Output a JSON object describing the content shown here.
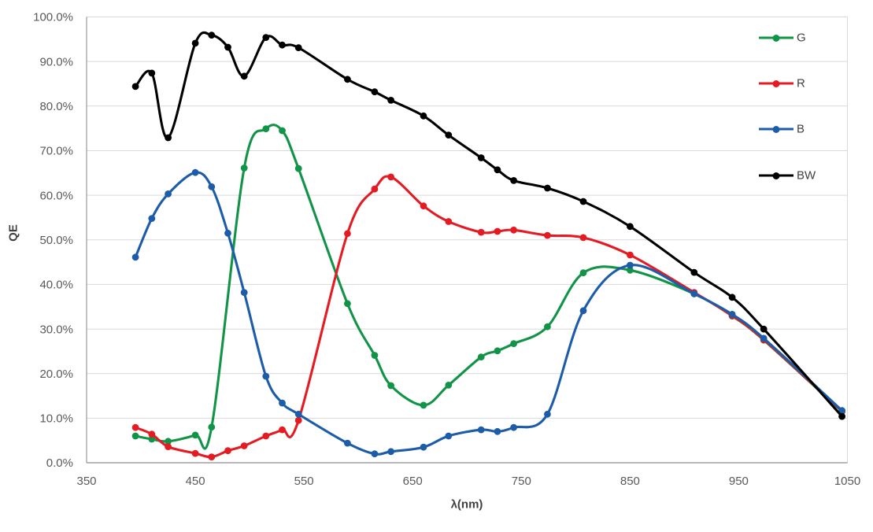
{
  "chart_data": {
    "type": "line",
    "title": "",
    "xlabel": "λ(nm)",
    "ylabel": "QE",
    "xlim": [
      350,
      1050
    ],
    "ylim": [
      0,
      100
    ],
    "grid": "horizontal-only",
    "legend_position": "inside-top-right",
    "x_ticks": [
      350,
      450,
      550,
      650,
      750,
      850,
      950,
      1050
    ],
    "x_tick_labels": [
      "350",
      "450",
      "550",
      "650",
      "750",
      "850",
      "950",
      "1050"
    ],
    "y_ticks": [
      0,
      10,
      20,
      30,
      40,
      50,
      60,
      70,
      80,
      90,
      100
    ],
    "y_tick_labels": [
      "0.0%",
      "10.0%",
      "20.0%",
      "30.0%",
      "40.0%",
      "50.0%",
      "60.0%",
      "70.0%",
      "80.0%",
      "90.0%",
      "100.0%"
    ],
    "series": [
      {
        "name": "G",
        "color": "#119447",
        "points": [
          [
            395,
            6.0
          ],
          [
            410,
            5.3
          ],
          [
            425,
            4.8
          ],
          [
            450,
            6.2
          ],
          [
            465,
            8.0
          ],
          [
            495,
            66.1
          ],
          [
            515,
            74.9
          ],
          [
            530,
            74.5
          ],
          [
            545,
            66.0
          ],
          [
            590,
            35.7
          ],
          [
            615,
            24.1
          ],
          [
            630,
            17.3
          ],
          [
            660,
            12.9
          ],
          [
            683,
            17.4
          ],
          [
            713,
            23.7
          ],
          [
            728,
            25.1
          ],
          [
            743,
            26.7
          ],
          [
            774,
            30.5
          ],
          [
            807,
            42.6
          ],
          [
            850,
            43.2
          ],
          [
            909,
            37.9
          ],
          [
            944,
            32.9
          ],
          [
            973,
            27.5
          ],
          [
            1045,
            11.5
          ]
        ]
      },
      {
        "name": "R",
        "color": "#E41B23",
        "points": [
          [
            395,
            7.9
          ],
          [
            410,
            6.4
          ],
          [
            425,
            3.6
          ],
          [
            450,
            2.1
          ],
          [
            465,
            1.3
          ],
          [
            480,
            2.7
          ],
          [
            495,
            3.8
          ],
          [
            515,
            6.0
          ],
          [
            530,
            7.4
          ],
          [
            545,
            9.5
          ],
          [
            590,
            51.4
          ],
          [
            615,
            61.4
          ],
          [
            630,
            64.1
          ],
          [
            660,
            57.6
          ],
          [
            683,
            54.1
          ],
          [
            713,
            51.7
          ],
          [
            728,
            51.9
          ],
          [
            743,
            52.2
          ],
          [
            774,
            51.0
          ],
          [
            807,
            50.5
          ],
          [
            850,
            46.6
          ],
          [
            909,
            38.2
          ],
          [
            944,
            33.0
          ],
          [
            973,
            27.6
          ],
          [
            1045,
            11.6
          ]
        ]
      },
      {
        "name": "B",
        "color": "#1D5CA8",
        "points": [
          [
            395,
            46.1
          ],
          [
            410,
            54.8
          ],
          [
            425,
            60.3
          ],
          [
            450,
            65.1
          ],
          [
            465,
            61.9
          ],
          [
            480,
            51.5
          ],
          [
            495,
            38.2
          ],
          [
            515,
            19.4
          ],
          [
            530,
            13.4
          ],
          [
            545,
            10.9
          ],
          [
            590,
            4.4
          ],
          [
            615,
            2.0
          ],
          [
            630,
            2.5
          ],
          [
            660,
            3.5
          ],
          [
            683,
            6.0
          ],
          [
            713,
            7.4
          ],
          [
            728,
            7.0
          ],
          [
            743,
            7.9
          ],
          [
            774,
            10.9
          ],
          [
            807,
            34.1
          ],
          [
            850,
            44.3
          ],
          [
            909,
            37.9
          ],
          [
            944,
            33.3
          ],
          [
            973,
            27.9
          ],
          [
            1045,
            11.7
          ]
        ]
      },
      {
        "name": "BW",
        "color": "#000000",
        "points": [
          [
            395,
            84.4
          ],
          [
            410,
            87.4
          ],
          [
            425,
            72.9
          ],
          [
            450,
            94.1
          ],
          [
            465,
            95.9
          ],
          [
            480,
            93.2
          ],
          [
            495,
            86.7
          ],
          [
            515,
            95.4
          ],
          [
            530,
            93.7
          ],
          [
            545,
            93.1
          ],
          [
            590,
            86.0
          ],
          [
            615,
            83.2
          ],
          [
            630,
            81.3
          ],
          [
            660,
            77.8
          ],
          [
            683,
            73.5
          ],
          [
            713,
            68.4
          ],
          [
            728,
            65.7
          ],
          [
            743,
            63.3
          ],
          [
            774,
            61.6
          ],
          [
            807,
            58.6
          ],
          [
            850,
            53.0
          ],
          [
            909,
            42.7
          ],
          [
            944,
            37.1
          ],
          [
            973,
            30.0
          ],
          [
            1045,
            10.4
          ]
        ]
      }
    ],
    "style": {
      "background": "#FFFFFF",
      "grid_color": "#D9D9D9",
      "plot_border_color": "#D9D9D9",
      "axis_line_color": "#A0A0A0",
      "tick_label_color": "#595959",
      "axis_title_color": "#404040",
      "legend_label_color": "#404040"
    }
  }
}
